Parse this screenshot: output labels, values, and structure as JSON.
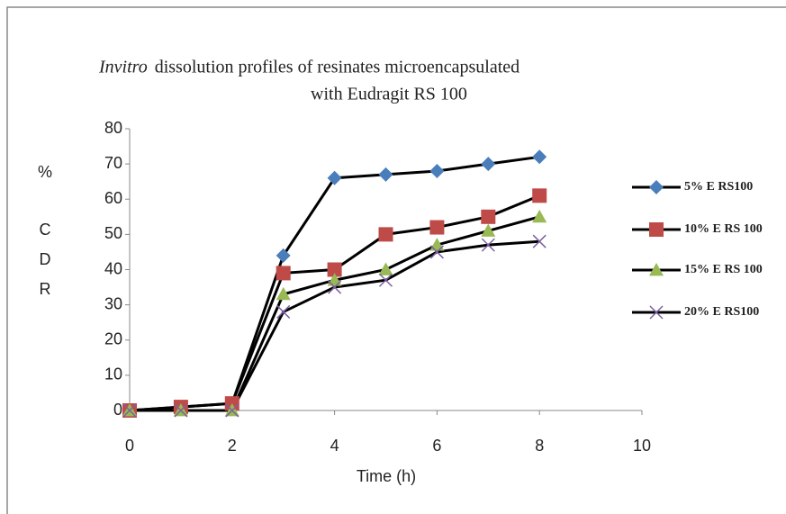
{
  "chart_data": {
    "type": "line",
    "title": [
      "Invitro",
      "dissolution profiles of resinates microencapsulated",
      "with  Eudragit RS 100"
    ],
    "xlabel": "Time (h)",
    "ylabel": [
      "%",
      "C",
      "D",
      "R"
    ],
    "x": [
      0,
      1,
      2,
      3,
      4,
      5,
      6,
      7,
      8
    ],
    "xlim": [
      0,
      10
    ],
    "xticks": [
      0,
      2,
      4,
      6,
      8,
      10
    ],
    "ylim": [
      0,
      80
    ],
    "yticks": [
      0,
      10,
      20,
      30,
      40,
      50,
      60,
      70,
      80
    ],
    "grid": false,
    "legend": "right",
    "series": [
      {
        "name": "5% E RS100",
        "color": "#4a7ebb",
        "marker": "diamond",
        "values": [
          0,
          1,
          2,
          44,
          66,
          67,
          68,
          70,
          72
        ]
      },
      {
        "name": "10% E RS 100",
        "color": "#be4b48",
        "marker": "square",
        "values": [
          0,
          1,
          2,
          39,
          40,
          50,
          52,
          55,
          61
        ]
      },
      {
        "name": "15% E RS 100",
        "color": "#98b954",
        "marker": "triangle",
        "values": [
          0,
          0,
          0,
          33,
          37,
          40,
          47,
          51,
          55
        ]
      },
      {
        "name": "20% E RS100",
        "color": "#7d60a0",
        "marker": "x",
        "values": [
          0,
          0,
          0,
          28,
          35,
          37,
          45,
          47,
          48
        ]
      }
    ]
  }
}
